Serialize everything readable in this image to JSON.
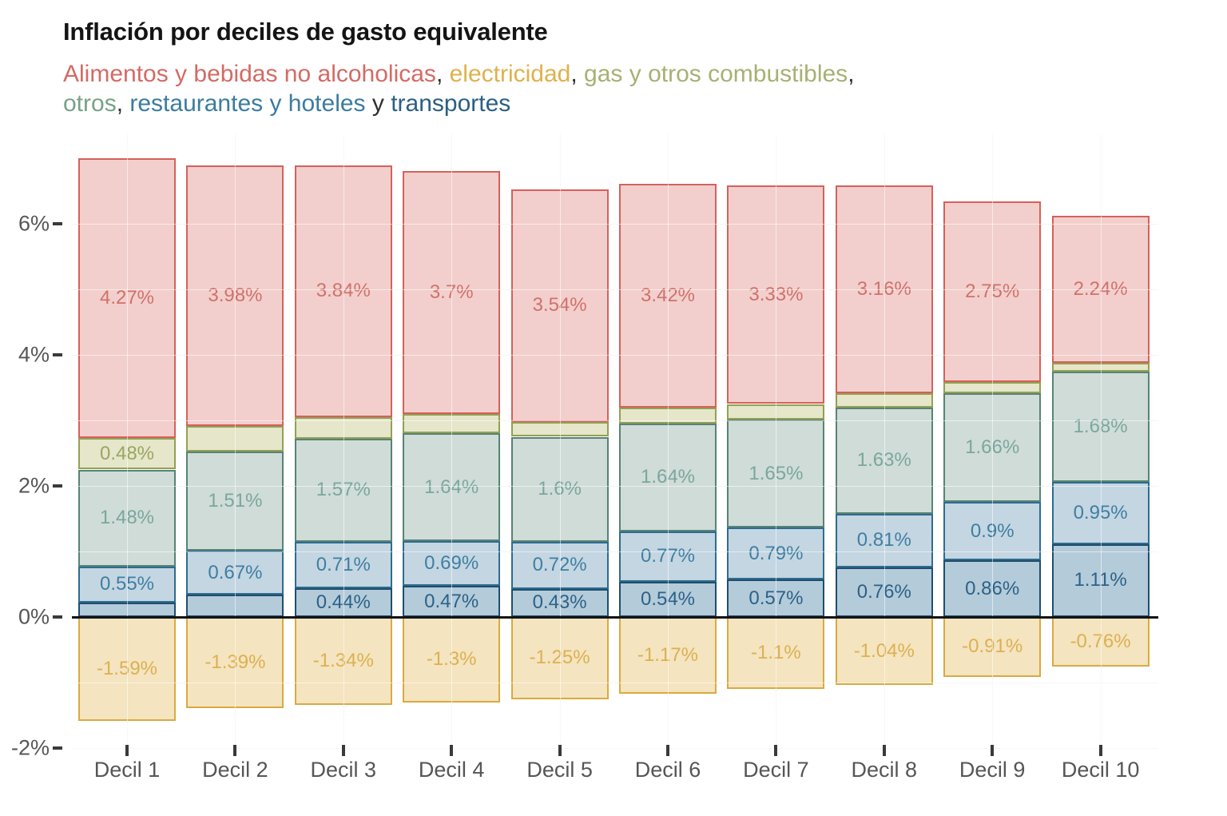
{
  "title": "Inflación por deciles de gasto equivalente",
  "subtitle_lines": [
    [
      {
        "text": "Alimentos y bebidas no alcoholicas",
        "color": "#d46a65"
      },
      {
        "text": ", ",
        "color": "#2e2e2e"
      },
      {
        "text": "electricidad",
        "color": "#dfb14c"
      },
      {
        "text": ", ",
        "color": "#2e2e2e"
      },
      {
        "text": "gas y otros combustibles",
        "color": "#a7b172"
      },
      {
        "text": ",",
        "color": "#2e2e2e"
      }
    ],
    [
      {
        "text": "otros",
        "color": "#76a287"
      },
      {
        "text": ", ",
        "color": "#2e2e2e"
      },
      {
        "text": "restaurantes y hoteles",
        "color": "#3b7c9e"
      },
      {
        "text": " y ",
        "color": "#2e2e2e"
      },
      {
        "text": "transportes",
        "color": "#2a5f83"
      }
    ]
  ],
  "chart_data": {
    "type": "bar",
    "stacked": true,
    "title": "Inflación por deciles de gasto equivalente",
    "categories": [
      "Decil 1",
      "Decil 2",
      "Decil 3",
      "Decil 4",
      "Decil 5",
      "Decil 6",
      "Decil 7",
      "Decil 8",
      "Decil 9",
      "Decil 10"
    ],
    "y_axis": {
      "unit": "%",
      "ylim": [
        -2.4,
        7.3
      ],
      "grid": true,
      "ticks": [
        {
          "label": "6%",
          "value": 6
        },
        {
          "label": "4%",
          "value": 4
        },
        {
          "label": "2%",
          "value": 2
        },
        {
          "label": "0%",
          "value": 0
        },
        {
          "label": "-2%",
          "value": -2
        }
      ]
    },
    "series": [
      {
        "name": "Alimentos y bebidas no alcoholicas",
        "values": [
          4.27,
          3.98,
          3.84,
          3.7,
          3.54,
          3.42,
          3.33,
          3.16,
          2.75,
          2.24
        ],
        "labels": [
          "4.27%",
          "3.98%",
          "3.84%",
          "3.7%",
          "3.54%",
          "3.42%",
          "3.33%",
          "3.16%",
          "2.75%",
          "2.24%"
        ],
        "fill": "#f2cfcc",
        "border": "#d4615c",
        "label_color": "#d0716b"
      },
      {
        "name": "gas y otros combustibles",
        "values": [
          0.48,
          0.39,
          0.33,
          0.3,
          0.23,
          0.24,
          0.24,
          0.22,
          0.17,
          0.14
        ],
        "labels": [
          "0.48%",
          null,
          null,
          null,
          null,
          null,
          null,
          null,
          null,
          null
        ],
        "fill": "#e5e6ca",
        "border": "#93a053",
        "label_color": "#9aa65f"
      },
      {
        "name": "otros",
        "values": [
          1.48,
          1.51,
          1.57,
          1.64,
          1.6,
          1.64,
          1.65,
          1.63,
          1.66,
          1.68
        ],
        "labels": [
          "1.48%",
          "1.51%",
          "1.57%",
          "1.64%",
          "1.6%",
          "1.64%",
          "1.65%",
          "1.63%",
          "1.66%",
          "1.68%"
        ],
        "fill": "#d0dcd8",
        "border": "#568376",
        "label_color": "#7aa79c"
      },
      {
        "name": "restaurantes y hoteles",
        "values": [
          0.55,
          0.67,
          0.71,
          0.69,
          0.72,
          0.77,
          0.79,
          0.81,
          0.9,
          0.95
        ],
        "labels": [
          "0.55%",
          "0.67%",
          "0.71%",
          "0.69%",
          "0.72%",
          "0.77%",
          "0.79%",
          "0.81%",
          "0.9%",
          "0.95%"
        ],
        "fill": "#c4d6e2",
        "border": "#2e6c8f",
        "label_color": "#3f7fa1"
      },
      {
        "name": "transportes",
        "values": [
          0.22,
          0.34,
          0.44,
          0.47,
          0.43,
          0.54,
          0.57,
          0.76,
          0.86,
          1.11
        ],
        "labels": [
          null,
          null,
          "0.44%",
          "0.47%",
          "0.43%",
          "0.54%",
          "0.57%",
          "0.76%",
          "0.86%",
          "1.11%"
        ],
        "fill": "#b4cbda",
        "border": "#1e4e6d",
        "label_color": "#2c6287"
      },
      {
        "name": "electricidad",
        "values": [
          -1.59,
          -1.39,
          -1.34,
          -1.3,
          -1.25,
          -1.17,
          -1.1,
          -1.04,
          -0.91,
          -0.76
        ],
        "labels": [
          "-1.59%",
          "-1.39%",
          "-1.34%",
          "-1.3%",
          "-1.25%",
          "-1.17%",
          "-1.1%",
          "-1.04%",
          "-0.91%",
          "-0.76%"
        ],
        "fill": "#f4e4bf",
        "border": "#d9aa41",
        "label_color": "#dcb052"
      }
    ]
  }
}
